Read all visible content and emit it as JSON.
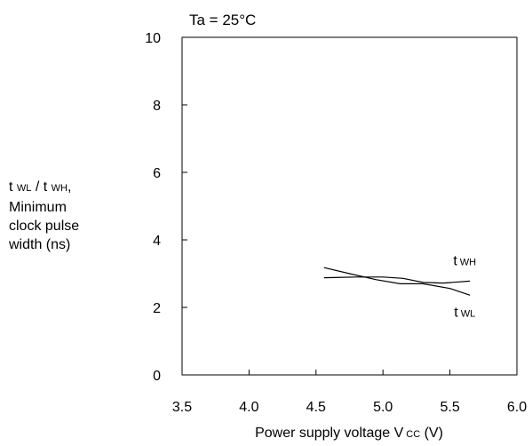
{
  "chart_data": {
    "type": "line",
    "title": "Ta = 25°C",
    "xlabel": "Power supply voltage V cc (V)",
    "xlabel_parts": {
      "main": "Power supply voltage V",
      "sub": "CC",
      "unit": " (V)"
    },
    "ylabel_lines": [
      {
        "t": "t",
        "sub": "WL",
        "mid": " / t",
        "sub2": "WH",
        "tail": ","
      },
      "Minimum",
      "clock pulse",
      "width (ns)"
    ],
    "xlim": [
      3.5,
      6.0
    ],
    "ylim": [
      0,
      10
    ],
    "x_ticks": [
      "3.5",
      "4.0",
      "4.5",
      "5.0",
      "5.5",
      "6.0"
    ],
    "y_ticks": [
      "0",
      "2",
      "4",
      "6",
      "8",
      "10"
    ],
    "grid": false,
    "series": [
      {
        "name": "tWH",
        "label": {
          "t": "t",
          "sub": "WH"
        },
        "x": [
          4.56,
          4.8,
          5.0,
          5.15,
          5.3,
          5.45,
          5.65
        ],
        "y": [
          2.88,
          2.9,
          2.9,
          2.86,
          2.74,
          2.72,
          2.78
        ]
      },
      {
        "name": "tWL",
        "label": {
          "t": "t",
          "sub": "WL"
        },
        "x": [
          4.56,
          4.75,
          4.95,
          5.13,
          5.3,
          5.5,
          5.65
        ],
        "y": [
          3.18,
          3.0,
          2.82,
          2.7,
          2.7,
          2.56,
          2.36
        ]
      }
    ]
  }
}
